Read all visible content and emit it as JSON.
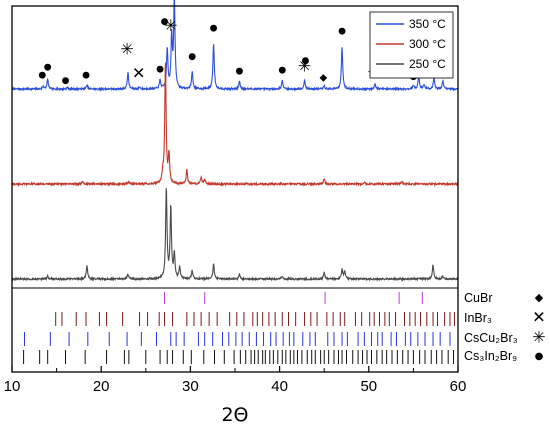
{
  "chart_data": {
    "type": "line",
    "xlabel": "2Θ",
    "ylabel": "",
    "xlim": [
      10,
      60
    ],
    "x_ticks": [
      "10",
      "20",
      "30",
      "40",
      "50",
      "60"
    ],
    "legend_placement": "top-right",
    "series": [
      {
        "name": "350 °C",
        "color": "#2b4fd8",
        "offset": 2.0,
        "peaks": [
          {
            "x": 13.5,
            "h": 0.03
          },
          {
            "x": 14.0,
            "h": 0.1
          },
          {
            "x": 16.2,
            "h": 0.015
          },
          {
            "x": 18.4,
            "h": 0.04
          },
          {
            "x": 23.0,
            "h": 0.17
          },
          {
            "x": 24.3,
            "h": 0.02
          },
          {
            "x": 26.6,
            "h": 0.09
          },
          {
            "x": 27.4,
            "h": 0.42
          },
          {
            "x": 27.9,
            "h": 0.55
          },
          {
            "x": 28.2,
            "h": 0.95
          },
          {
            "x": 30.2,
            "h": 0.18
          },
          {
            "x": 32.6,
            "h": 0.48
          },
          {
            "x": 35.5,
            "h": 0.08
          },
          {
            "x": 40.3,
            "h": 0.09
          },
          {
            "x": 42.8,
            "h": 0.09
          },
          {
            "x": 45.0,
            "h": 0.03
          },
          {
            "x": 47.0,
            "h": 0.44
          },
          {
            "x": 50.7,
            "h": 0.06
          },
          {
            "x": 55.0,
            "h": 0.04
          },
          {
            "x": 55.6,
            "h": 0.14
          },
          {
            "x": 56.2,
            "h": 0.05
          },
          {
            "x": 57.3,
            "h": 0.11
          },
          {
            "x": 58.3,
            "h": 0.09
          }
        ]
      },
      {
        "name": "300 °C",
        "color": "#c0392b",
        "offset": 1.0,
        "peaks": [
          {
            "x": 17.9,
            "h": 0.02
          },
          {
            "x": 23.1,
            "h": 0.02
          },
          {
            "x": 26.9,
            "h": 0.1
          },
          {
            "x": 27.2,
            "h": 1.28
          },
          {
            "x": 27.6,
            "h": 0.3
          },
          {
            "x": 29.6,
            "h": 0.15
          },
          {
            "x": 31.2,
            "h": 0.07
          },
          {
            "x": 31.6,
            "h": 0.05
          },
          {
            "x": 45.0,
            "h": 0.05
          },
          {
            "x": 49.5,
            "h": 0.02
          },
          {
            "x": 53.7,
            "h": 0.02
          }
        ]
      },
      {
        "name": "250 °C",
        "color": "#4a4a4a",
        "offset": 0.0,
        "peaks": [
          {
            "x": 14.0,
            "h": 0.03
          },
          {
            "x": 18.4,
            "h": 0.14
          },
          {
            "x": 23.0,
            "h": 0.05
          },
          {
            "x": 27.3,
            "h": 0.95
          },
          {
            "x": 27.8,
            "h": 0.75
          },
          {
            "x": 28.2,
            "h": 0.25
          },
          {
            "x": 28.8,
            "h": 0.12
          },
          {
            "x": 30.2,
            "h": 0.09
          },
          {
            "x": 32.6,
            "h": 0.16
          },
          {
            "x": 35.5,
            "h": 0.05
          },
          {
            "x": 40.3,
            "h": 0.03
          },
          {
            "x": 45.0,
            "h": 0.07
          },
          {
            "x": 47.0,
            "h": 0.1
          },
          {
            "x": 47.3,
            "h": 0.08
          },
          {
            "x": 57.2,
            "h": 0.15
          },
          {
            "x": 58.3,
            "h": 0.03
          }
        ]
      }
    ],
    "reference_patterns": [
      {
        "name": "CuBr",
        "symbol": "◆",
        "color": "#b041d8",
        "positions": [
          27.1,
          31.6,
          45.1,
          53.4,
          56.0
        ]
      },
      {
        "name": "InBr₃",
        "symbol": "✕",
        "color": "#7b1a1a",
        "positions": [
          14.9,
          15.6,
          17.2,
          18.3,
          19.8,
          20.6,
          22.4,
          24.3,
          25.2,
          26.5,
          27.1,
          28.0,
          29.6,
          30.4,
          31.2,
          32.1,
          33.0,
          34.4,
          35.2,
          36.0,
          37.0,
          37.5,
          38.1,
          38.8,
          39.5,
          40.3,
          41.0,
          41.8,
          42.8,
          43.5,
          44.2,
          45.3,
          46.0,
          46.8,
          47.3,
          48.5,
          49.2,
          50.1,
          50.6,
          51.2,
          51.8,
          52.3,
          53.0,
          54.0,
          54.6,
          55.2,
          55.8,
          56.5,
          57.2,
          57.7,
          58.5,
          59.1,
          59.6
        ]
      },
      {
        "name": "CsCu₂Br₃",
        "symbol": "✳",
        "color": "#2b35d8",
        "positions": [
          11.4,
          14.3,
          16.4,
          18.5,
          20.9,
          22.9,
          24.5,
          26.2,
          27.8,
          28.4,
          29.3,
          30.9,
          31.6,
          32.5,
          33.6,
          34.3,
          35.1,
          35.8,
          36.6,
          37.4,
          38.2,
          39.0,
          39.6,
          40.4,
          41.1,
          41.6,
          42.6,
          43.4,
          44.0,
          45.4,
          46.1,
          47.0,
          47.6,
          48.8,
          49.5,
          50.3,
          51.0,
          51.5,
          52.5,
          53.1,
          54.1,
          54.7,
          55.5,
          56.3,
          57.2,
          58.0,
          59.1
        ]
      },
      {
        "name": "Cs₃In₂Br₉",
        "symbol": "●",
        "color": "#111111",
        "positions": [
          11.3,
          13.1,
          14.0,
          16.0,
          18.2,
          20.6,
          22.6,
          23.1,
          25.0,
          26.6,
          27.4,
          28.0,
          29.2,
          30.1,
          31.5,
          32.7,
          33.8,
          34.9,
          35.6,
          36.2,
          36.8,
          37.2,
          37.6,
          38.1,
          38.4,
          38.9,
          39.3,
          39.8,
          40.3,
          40.7,
          41.2,
          41.6,
          42.0,
          42.5,
          43.1,
          43.6,
          44.0,
          44.6,
          45.0,
          45.5,
          46.1,
          46.6,
          47.0,
          47.5,
          48.2,
          48.8,
          49.3,
          49.8,
          50.3,
          50.9,
          51.5,
          52.0,
          52.6,
          53.2,
          53.8,
          54.4,
          55.0,
          55.7,
          56.3,
          57.0,
          57.6,
          58.2,
          58.9,
          59.5
        ]
      }
    ],
    "annotations": [
      {
        "x": 13.4,
        "y": 2.15,
        "symbol": "●"
      },
      {
        "x": 14.0,
        "y": 2.23,
        "symbol": "●"
      },
      {
        "x": 16.0,
        "y": 2.09,
        "symbol": "●"
      },
      {
        "x": 18.3,
        "y": 2.15,
        "symbol": "●"
      },
      {
        "x": 22.9,
        "y": 2.41,
        "symbol": "✳"
      },
      {
        "x": 24.2,
        "y": 2.16,
        "symbol": "✕"
      },
      {
        "x": 26.6,
        "y": 2.21,
        "symbol": "●"
      },
      {
        "x": 27.1,
        "y": 2.71,
        "symbol": "●"
      },
      {
        "x": 27.8,
        "y": 2.66,
        "symbol": "✳"
      },
      {
        "x": 28.1,
        "y": 3.14,
        "symbol": "●"
      },
      {
        "x": 28.1,
        "y": 3.04,
        "symbol": "✳"
      },
      {
        "x": 30.2,
        "y": 2.34,
        "symbol": "●"
      },
      {
        "x": 32.6,
        "y": 2.64,
        "symbol": "●"
      },
      {
        "x": 35.5,
        "y": 2.19,
        "symbol": "●"
      },
      {
        "x": 40.3,
        "y": 2.2,
        "symbol": "●"
      },
      {
        "x": 42.9,
        "y": 2.3,
        "symbol": "●"
      },
      {
        "x": 42.8,
        "y": 2.23,
        "symbol": "✳"
      },
      {
        "x": 44.9,
        "y": 2.12,
        "symbol": "◆"
      },
      {
        "x": 47.0,
        "y": 2.61,
        "symbol": "●"
      },
      {
        "x": 50.7,
        "y": 2.24,
        "symbol": "●"
      },
      {
        "x": 50.6,
        "y": 2.17,
        "symbol": "✳"
      },
      {
        "x": 55.0,
        "y": 2.13,
        "symbol": "●"
      },
      {
        "x": 55.6,
        "y": 2.32,
        "symbol": "●"
      },
      {
        "x": 55.6,
        "y": 2.26,
        "symbol": "◆"
      },
      {
        "x": 57.3,
        "y": 2.18,
        "symbol": "●"
      },
      {
        "x": 58.3,
        "y": 2.19,
        "symbol": "●"
      }
    ]
  }
}
